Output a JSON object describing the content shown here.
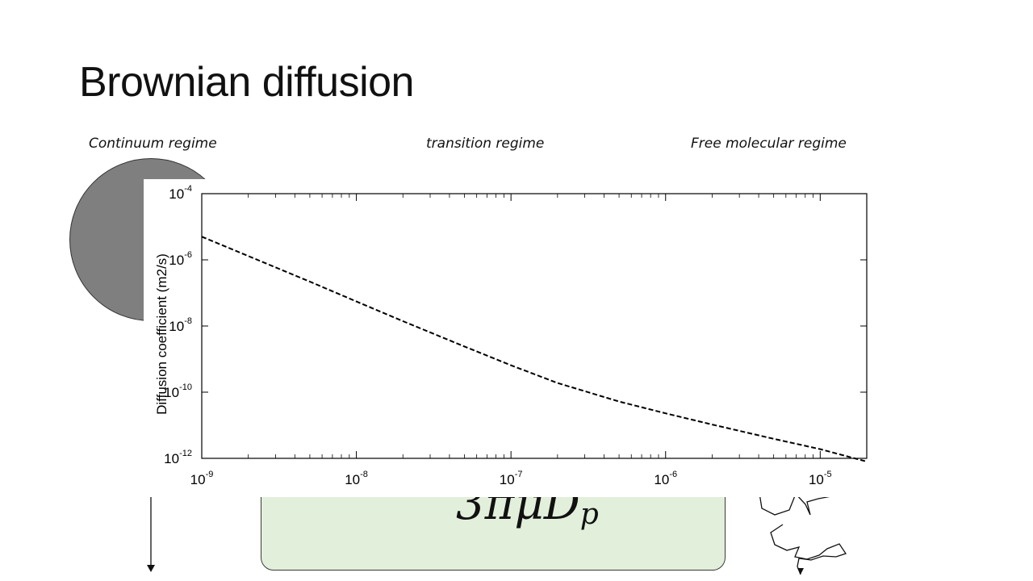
{
  "slide": {
    "title": "Brownian diffusion",
    "regimes": [
      "Continuum regime",
      "transition regime",
      "Free molecular regime"
    ],
    "formula": {
      "main": "3πμD",
      "sub": "p"
    }
  },
  "colors": {
    "formula_box": "#e2efda",
    "sphere": "#7f7f7f",
    "curve": "#000000"
  },
  "chart_data": {
    "type": "line",
    "title": "",
    "xlabel": "",
    "ylabel": "Diffusion coefficient (m2/s)",
    "xscale": "log",
    "yscale": "log",
    "xlim": [
      1e-09,
      2e-05
    ],
    "ylim": [
      1e-12,
      0.0001
    ],
    "xticks": [
      {
        "value": 1e-09,
        "base": "10",
        "exp": "-9"
      },
      {
        "value": 1e-08,
        "base": "10",
        "exp": "-8"
      },
      {
        "value": 1e-07,
        "base": "10",
        "exp": "-7"
      },
      {
        "value": 1e-06,
        "base": "10",
        "exp": "-6"
      },
      {
        "value": 1e-05,
        "base": "10",
        "exp": "-5"
      }
    ],
    "yticks": [
      {
        "value": 0.0001,
        "base": "10",
        "exp": "-4"
      },
      {
        "value": 1e-06,
        "base": "10",
        "exp": "-6"
      },
      {
        "value": 1e-08,
        "base": "10",
        "exp": "-8"
      },
      {
        "value": 1e-10,
        "base": "10",
        "exp": "-10"
      },
      {
        "value": 1e-12,
        "base": "10",
        "exp": "-12"
      }
    ],
    "grid": false,
    "series": [
      {
        "style": "dashed",
        "x": [
          1e-09,
          2e-09,
          5e-09,
          1e-08,
          2e-08,
          5e-08,
          1e-07,
          2e-07,
          5e-07,
          1e-06,
          2e-06,
          5e-06,
          1e-05,
          2e-05
        ],
        "y": [
          5e-06,
          1.3e-06,
          2.2e-07,
          5.5e-08,
          1.4e-08,
          2.4e-09,
          6.5e-10,
          1.9e-10,
          5.2e-11,
          2.3e-11,
          1.05e-11,
          3.9e-12,
          1.9e-12,
          8e-13
        ]
      }
    ]
  }
}
